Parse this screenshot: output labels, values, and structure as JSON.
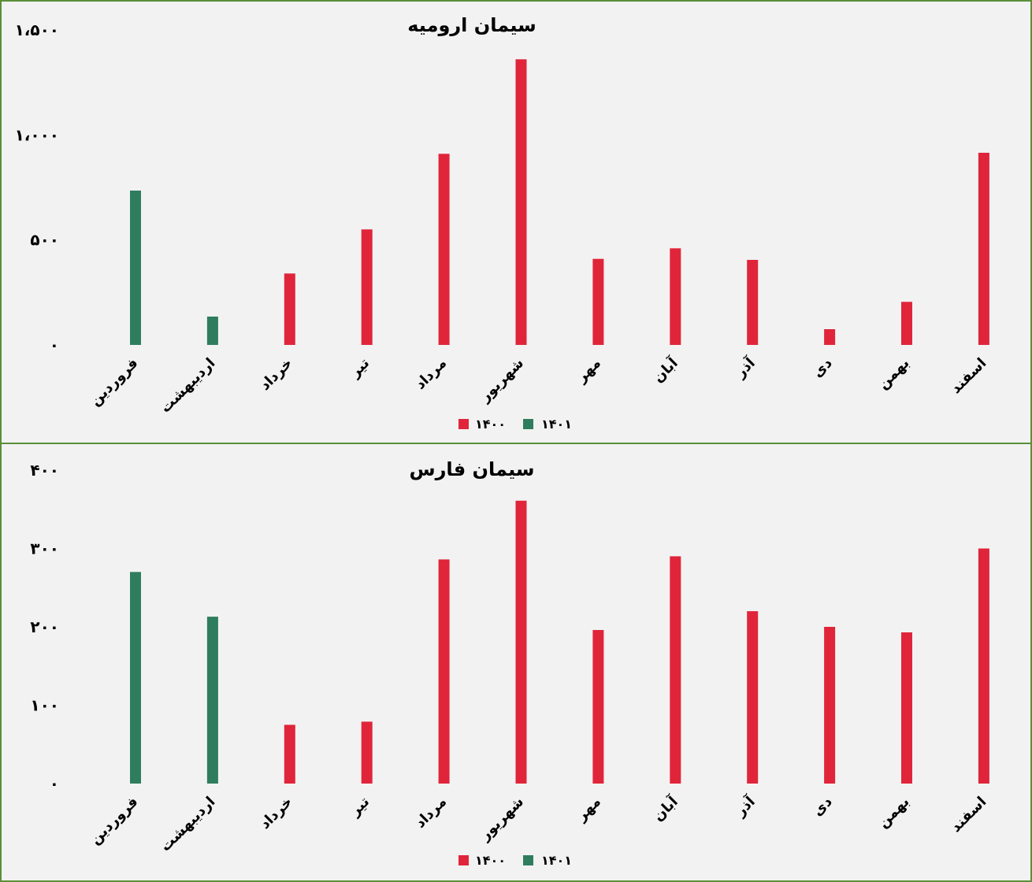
{
  "colors": {
    "s1400": "#e0253a",
    "s1401": "#2f7d5f",
    "border": "#5b8f3a",
    "background": "#f2f2f2"
  },
  "chart_data": [
    {
      "type": "bar",
      "title": "سیمان ارومیه",
      "categories": [
        "فروردین",
        "اردیبهشت",
        "خرداد",
        "تیر",
        "مرداد",
        "شهریور",
        "مهر",
        "آبان",
        "آذر",
        "دی",
        "بهمن",
        "اسفند"
      ],
      "ylim": [
        0,
        1500
      ],
      "yticks": [
        0,
        500,
        1000,
        1500
      ],
      "ytick_labels": [
        "۰",
        "۵۰۰",
        "۱،۰۰۰",
        "۱،۵۰۰"
      ],
      "legend_position": "bottom",
      "series": [
        {
          "name": "۱۴۰۰",
          "color": "#e0253a",
          "values": [
            null,
            null,
            340,
            550,
            910,
            1360,
            410,
            460,
            405,
            75,
            205,
            915
          ]
        },
        {
          "name": "۱۴۰۱",
          "color": "#2f7d5f",
          "values": [
            735,
            135,
            null,
            null,
            null,
            null,
            null,
            null,
            null,
            null,
            null,
            null
          ]
        }
      ]
    },
    {
      "type": "bar",
      "title": "سیمان فارس",
      "categories": [
        "فروردین",
        "اردیبهشت",
        "خرداد",
        "تیر",
        "مرداد",
        "شهریور",
        "مهر",
        "آبان",
        "آذر",
        "دی",
        "بهمن",
        "اسفند"
      ],
      "ylim": [
        0,
        400
      ],
      "yticks": [
        0,
        100,
        200,
        300,
        400
      ],
      "ytick_labels": [
        "۰",
        "۱۰۰",
        "۲۰۰",
        "۳۰۰",
        "۴۰۰"
      ],
      "legend_position": "bottom",
      "series": [
        {
          "name": "۱۴۰۰",
          "color": "#e0253a",
          "values": [
            null,
            null,
            75,
            79,
            286,
            361,
            196,
            290,
            220,
            200,
            193,
            300
          ]
        },
        {
          "name": "۱۴۰۱",
          "color": "#2f7d5f",
          "values": [
            270,
            213,
            null,
            null,
            null,
            null,
            null,
            null,
            null,
            null,
            null,
            null
          ]
        }
      ]
    }
  ]
}
